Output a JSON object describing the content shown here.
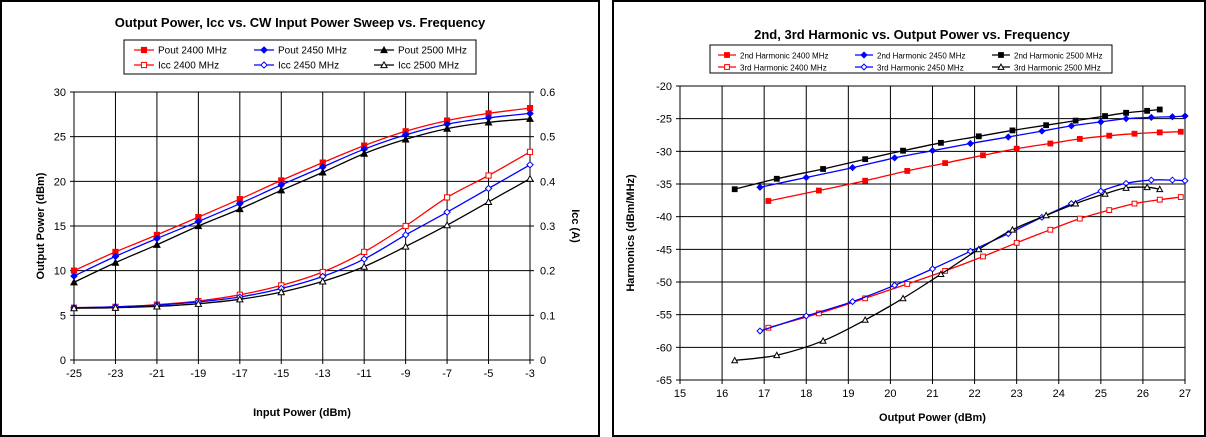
{
  "chart_data": [
    {
      "type": "line",
      "title": "Output Power, Icc vs. CW Input Power Sweep vs. Frequency",
      "xlabel": "Input Power (dBm)",
      "ylabel": "Output Power (dBm)",
      "y2label": "Icc (A)",
      "xlim": [
        -25,
        -3
      ],
      "ylim": [
        0,
        30
      ],
      "y2lim": [
        0,
        0.6
      ],
      "xticks": [
        "-25",
        "-23",
        "-21",
        "-19",
        "-17",
        "-15",
        "-13",
        "-11",
        "-9",
        "-7",
        "-5",
        "-3"
      ],
      "yticks": [
        "0",
        "5",
        "10",
        "15",
        "20",
        "25",
        "30"
      ],
      "y2ticks": [
        "0",
        "0.1",
        "0.2",
        "0.3",
        "0.4",
        "0.5",
        "0.6"
      ],
      "grid": true,
      "legend_position": "top",
      "series": [
        {
          "name": "Pout 2400 MHz",
          "axis": "left",
          "color": "#ff0000",
          "marker": "square-filled",
          "x": [
            -25,
            -23,
            -21,
            -19,
            -17,
            -15,
            -13,
            -11,
            -9,
            -7,
            -5,
            -3
          ],
          "y": [
            10.0,
            12.1,
            14.0,
            16.0,
            18.0,
            20.1,
            22.1,
            24.0,
            25.6,
            26.8,
            27.6,
            28.2
          ]
        },
        {
          "name": "Pout 2450 MHz",
          "axis": "left",
          "color": "#0000ff",
          "marker": "diamond-filled",
          "x": [
            -25,
            -23,
            -21,
            -19,
            -17,
            -15,
            -13,
            -11,
            -9,
            -7,
            -5,
            -3
          ],
          "y": [
            9.4,
            11.6,
            13.6,
            15.5,
            17.5,
            19.6,
            21.6,
            23.6,
            25.2,
            26.4,
            27.1,
            27.6
          ]
        },
        {
          "name": "Pout 2500 MHz",
          "axis": "left",
          "color": "#000000",
          "marker": "triangle-filled",
          "x": [
            -25,
            -23,
            -21,
            -19,
            -17,
            -15,
            -13,
            -11,
            -9,
            -7,
            -5,
            -3
          ],
          "y": [
            8.7,
            10.9,
            12.9,
            15.0,
            16.9,
            19.0,
            21.0,
            23.1,
            24.7,
            25.9,
            26.6,
            27.0
          ]
        },
        {
          "name": "Icc 2400 MHz",
          "axis": "right",
          "color": "#ff0000",
          "marker": "square-open",
          "x": [
            -25,
            -23,
            -21,
            -19,
            -17,
            -15,
            -13,
            -11,
            -9,
            -7,
            -5,
            -3
          ],
          "y": [
            0.117,
            0.119,
            0.124,
            0.132,
            0.146,
            0.167,
            0.197,
            0.242,
            0.3,
            0.364,
            0.413,
            0.466
          ]
        },
        {
          "name": "Icc 2450 MHz",
          "axis": "right",
          "color": "#0000ff",
          "marker": "diamond-open",
          "x": [
            -25,
            -23,
            -21,
            -19,
            -17,
            -15,
            -13,
            -11,
            -9,
            -7,
            -5,
            -3
          ],
          "y": [
            0.117,
            0.119,
            0.123,
            0.13,
            0.141,
            0.16,
            0.187,
            0.226,
            0.28,
            0.331,
            0.384,
            0.437
          ]
        },
        {
          "name": "Icc 2500 MHz",
          "axis": "right",
          "color": "#000000",
          "marker": "triangle-open",
          "x": [
            -25,
            -23,
            -21,
            -19,
            -17,
            -15,
            -13,
            -11,
            -9,
            -7,
            -5,
            -3
          ],
          "y": [
            0.116,
            0.117,
            0.12,
            0.126,
            0.136,
            0.152,
            0.176,
            0.209,
            0.254,
            0.302,
            0.354,
            0.406
          ]
        }
      ]
    },
    {
      "type": "line",
      "title": "2nd, 3rd Harmonic vs. Output Power vs. Frequency",
      "xlabel": "Output Power (dBm)",
      "ylabel": "Harmonics (dBm/MHz)",
      "xlim": [
        15,
        27
      ],
      "ylim": [
        -65,
        -20
      ],
      "xticks": [
        "15",
        "16",
        "17",
        "18",
        "19",
        "20",
        "21",
        "22",
        "23",
        "24",
        "25",
        "26",
        "27"
      ],
      "yticks": [
        "-65",
        "-60",
        "-55",
        "-50",
        "-45",
        "-40",
        "-35",
        "-30",
        "-25",
        "-20"
      ],
      "grid": true,
      "legend_position": "top",
      "series": [
        {
          "name": "2nd Harmonic 2400 MHz",
          "color": "#ff0000",
          "marker": "square-filled",
          "x": [
            17.1,
            18.3,
            19.4,
            20.4,
            21.3,
            22.2,
            23.0,
            23.8,
            24.5,
            25.2,
            25.8,
            26.4,
            26.9
          ],
          "y": [
            -37.6,
            -36.0,
            -34.5,
            -33.0,
            -31.8,
            -30.6,
            -29.6,
            -28.8,
            -28.1,
            -27.6,
            -27.3,
            -27.1,
            -27.0
          ]
        },
        {
          "name": "2nd Harmonic 2450 MHz",
          "color": "#0000ff",
          "marker": "diamond-filled",
          "x": [
            16.9,
            18.0,
            19.1,
            20.1,
            21.0,
            21.9,
            22.8,
            23.6,
            24.3,
            25.0,
            25.6,
            26.2,
            26.7,
            27.0
          ],
          "y": [
            -35.5,
            -34.0,
            -32.5,
            -31.0,
            -29.9,
            -28.8,
            -27.8,
            -26.9,
            -26.1,
            -25.5,
            -25.0,
            -24.8,
            -24.7,
            -24.6
          ]
        },
        {
          "name": "2nd Harmonic 2500 MHz",
          "color": "#000000",
          "marker": "square-filled",
          "x": [
            16.3,
            17.3,
            18.4,
            19.4,
            20.3,
            21.2,
            22.1,
            22.9,
            23.7,
            24.4,
            25.1,
            25.6,
            26.1,
            26.4
          ],
          "y": [
            -35.8,
            -34.2,
            -32.7,
            -31.2,
            -29.9,
            -28.7,
            -27.7,
            -26.8,
            -26.0,
            -25.3,
            -24.6,
            -24.1,
            -23.8,
            -23.6
          ]
        },
        {
          "name": "3rd Harmonic 2400 MHz",
          "color": "#ff0000",
          "marker": "square-open",
          "x": [
            17.1,
            18.3,
            19.4,
            20.4,
            21.3,
            22.2,
            23.0,
            23.8,
            24.5,
            25.2,
            25.8,
            26.4,
            26.9
          ],
          "y": [
            -57.0,
            -54.8,
            -52.5,
            -50.3,
            -48.3,
            -46.1,
            -44.0,
            -42.0,
            -40.3,
            -39.0,
            -38.0,
            -37.4,
            -37.0
          ]
        },
        {
          "name": "3rd Harmonic 2450 MHz",
          "color": "#0000ff",
          "marker": "diamond-open",
          "x": [
            16.9,
            18.0,
            19.1,
            20.1,
            21.0,
            21.9,
            22.8,
            23.6,
            24.3,
            25.0,
            25.6,
            26.2,
            26.7,
            27.0
          ],
          "y": [
            -57.5,
            -55.2,
            -53.0,
            -50.5,
            -48.0,
            -45.3,
            -42.6,
            -40.1,
            -38.0,
            -36.1,
            -34.9,
            -34.4,
            -34.4,
            -34.5
          ]
        },
        {
          "name": "3rd Harmonic 2500 MHz",
          "color": "#000000",
          "marker": "triangle-open",
          "x": [
            16.3,
            17.3,
            18.4,
            19.4,
            20.3,
            21.2,
            22.1,
            22.9,
            23.7,
            24.4,
            25.1,
            25.6,
            26.1,
            26.4
          ],
          "y": [
            -62.0,
            -61.2,
            -59.0,
            -55.8,
            -52.5,
            -48.8,
            -45.0,
            -42.0,
            -39.8,
            -38.0,
            -36.5,
            -35.6,
            -35.5,
            -35.8
          ]
        }
      ]
    }
  ]
}
